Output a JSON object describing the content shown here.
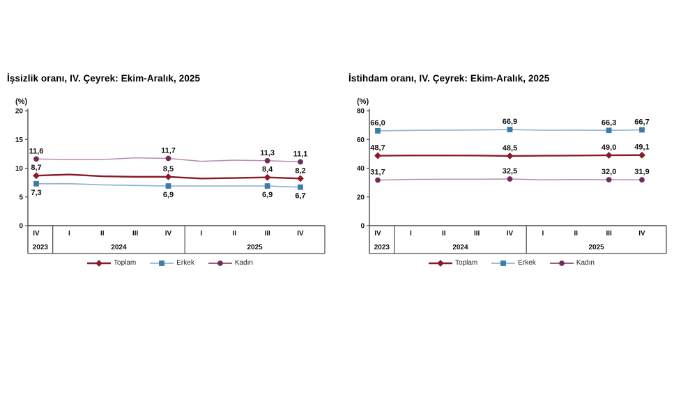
{
  "page": {
    "background": "#ffffff"
  },
  "chart_data": [
    {
      "type": "line",
      "title": "İşsizlik oranı, IV. Çeyrek: Ekim-Aralık, 2025",
      "unit_label": "(%)",
      "ylim": [
        0,
        20
      ],
      "y_ticks": [
        0,
        5,
        10,
        15,
        20
      ],
      "x_quarters": [
        "IV",
        "I",
        "II",
        "III",
        "IV",
        "I",
        "II",
        "III",
        "IV"
      ],
      "year_groups": [
        {
          "label": "2023",
          "quarters": 1
        },
        {
          "label": "2024",
          "quarters": 4
        },
        {
          "label": "2025",
          "quarters": 4
        }
      ],
      "grid": false,
      "legend_position": "bottom",
      "series": [
        {
          "name": "Toplam",
          "color": "#8a1a28",
          "marker": "diamond",
          "marker_color": "#8a1a28",
          "line_width": 2.4,
          "label_side": "above",
          "values": [
            8.7,
            8.9,
            8.6,
            8.5,
            8.5,
            8.2,
            8.3,
            8.4,
            8.2
          ],
          "labeled_points": [
            {
              "index": 0,
              "text": "8,7"
            },
            {
              "index": 4,
              "text": "8,5"
            },
            {
              "index": 7,
              "text": "8,4"
            },
            {
              "index": 8,
              "text": "8,2"
            }
          ]
        },
        {
          "name": "Erkek",
          "color": "#8fb4d4",
          "marker": "square",
          "marker_color": "#3e7ca8",
          "line_width": 1.7,
          "label_side": "below",
          "values": [
            7.3,
            7.3,
            7.1,
            7.0,
            6.9,
            6.9,
            6.9,
            6.9,
            6.7
          ],
          "labeled_points": [
            {
              "index": 0,
              "text": "7,3"
            },
            {
              "index": 4,
              "text": "6,9"
            },
            {
              "index": 7,
              "text": "6,9"
            },
            {
              "index": 8,
              "text": "6,7"
            }
          ]
        },
        {
          "name": "Kadın",
          "color": "#b78cb1",
          "marker": "circle",
          "marker_color": "#6f2d5c",
          "line_width": 1.5,
          "label_side": "above",
          "values": [
            11.6,
            11.5,
            11.5,
            11.8,
            11.7,
            11.2,
            11.4,
            11.3,
            11.1
          ],
          "labeled_points": [
            {
              "index": 0,
              "text": "11,6"
            },
            {
              "index": 4,
              "text": "11,7"
            },
            {
              "index": 7,
              "text": "11,3"
            },
            {
              "index": 8,
              "text": "11,1"
            }
          ]
        }
      ]
    },
    {
      "type": "line",
      "title": "İstihdam oranı, IV. Çeyrek: Ekim-Aralık, 2025",
      "unit_label": "(%)",
      "ylim": [
        0,
        80
      ],
      "y_ticks": [
        0,
        20,
        40,
        60,
        80
      ],
      "x_quarters": [
        "IV",
        "I",
        "II",
        "III",
        "IV",
        "I",
        "II",
        "III",
        "IV"
      ],
      "year_groups": [
        {
          "label": "2023",
          "quarters": 1
        },
        {
          "label": "2024",
          "quarters": 4
        },
        {
          "label": "2025",
          "quarters": 4
        }
      ],
      "grid": false,
      "legend_position": "bottom",
      "series": [
        {
          "name": "Toplam",
          "color": "#8a1a28",
          "marker": "diamond",
          "marker_color": "#8a1a28",
          "line_width": 2.4,
          "label_side": "above",
          "values": [
            48.7,
            48.9,
            48.9,
            48.8,
            48.5,
            48.7,
            48.8,
            49.0,
            49.1
          ],
          "labeled_points": [
            {
              "index": 0,
              "text": "48,7"
            },
            {
              "index": 4,
              "text": "48,5"
            },
            {
              "index": 7,
              "text": "49,0"
            },
            {
              "index": 8,
              "text": "49,1"
            }
          ]
        },
        {
          "name": "Erkek",
          "color": "#8fb4d4",
          "marker": "square",
          "marker_color": "#3e7ca8",
          "line_width": 1.7,
          "label_side": "above",
          "values": [
            66.0,
            66.3,
            66.5,
            66.6,
            66.9,
            66.4,
            66.5,
            66.3,
            66.7
          ],
          "labeled_points": [
            {
              "index": 0,
              "text": "66,0"
            },
            {
              "index": 4,
              "text": "66,9"
            },
            {
              "index": 7,
              "text": "66,3"
            },
            {
              "index": 8,
              "text": "66,7"
            }
          ]
        },
        {
          "name": "Kadın",
          "color": "#b78cb1",
          "marker": "circle",
          "marker_color": "#6f2d5c",
          "line_width": 1.5,
          "label_side": "above",
          "values": [
            31.7,
            32.2,
            32.3,
            32.3,
            32.5,
            31.9,
            32.1,
            32.0,
            31.9
          ],
          "labeled_points": [
            {
              "index": 0,
              "text": "31,7"
            },
            {
              "index": 4,
              "text": "32,5"
            },
            {
              "index": 7,
              "text": "32,0"
            },
            {
              "index": 8,
              "text": "31,9"
            }
          ]
        }
      ]
    }
  ]
}
